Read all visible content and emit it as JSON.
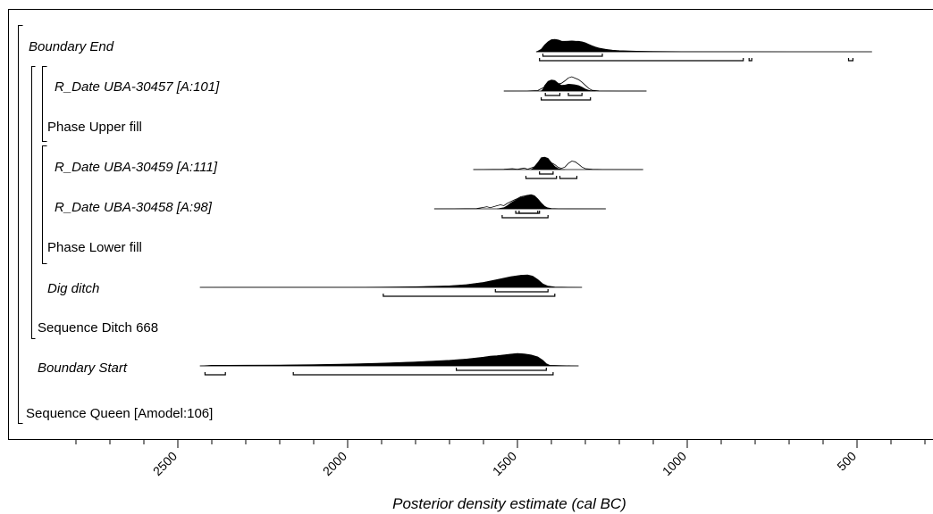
{
  "chart_data": {
    "type": "area",
    "xlabel": "Posterior density estimate (cal BC)",
    "x_ticks": [
      2500,
      2000,
      1500,
      1000,
      500
    ],
    "xlim": [
      2850,
      200
    ],
    "rows": [
      {
        "label": "Boundary End",
        "italic": true,
        "posterior": [
          [
            1445,
            0
          ],
          [
            1440,
            0.05
          ],
          [
            1430,
            0.2
          ],
          [
            1420,
            0.55
          ],
          [
            1410,
            0.8
          ],
          [
            1400,
            0.97
          ],
          [
            1390,
            1.0
          ],
          [
            1380,
            0.95
          ],
          [
            1370,
            0.86
          ],
          [
            1360,
            0.84
          ],
          [
            1350,
            0.86
          ],
          [
            1340,
            0.87
          ],
          [
            1330,
            0.85
          ],
          [
            1320,
            0.84
          ],
          [
            1310,
            0.8
          ],
          [
            1300,
            0.72
          ],
          [
            1290,
            0.6
          ],
          [
            1280,
            0.48
          ],
          [
            1270,
            0.38
          ],
          [
            1260,
            0.3
          ],
          [
            1240,
            0.2
          ],
          [
            1220,
            0.13
          ],
          [
            1200,
            0.09
          ],
          [
            1150,
            0.05
          ],
          [
            1100,
            0.03
          ],
          [
            1000,
            0.015
          ],
          [
            900,
            0.008
          ],
          [
            800,
            0.005
          ],
          [
            700,
            0.003
          ],
          [
            600,
            0.002
          ],
          [
            456,
            0
          ]
        ],
        "ranges_68": [
          [
            1425,
            1250
          ]
        ],
        "ranges_95": [
          [
            1435,
            835
          ],
          [
            818,
            810
          ],
          [
            525,
            512
          ]
        ]
      },
      {
        "label": "R_Date UBA-30457 [A:101]",
        "italic": true,
        "prior": [
          [
            1540,
            0
          ],
          [
            1470,
            0.005
          ],
          [
            1440,
            0.04
          ],
          [
            1420,
            0.28
          ],
          [
            1410,
            0.6
          ],
          [
            1400,
            0.72
          ],
          [
            1390,
            0.68
          ],
          [
            1380,
            0.5
          ],
          [
            1370,
            0.55
          ],
          [
            1360,
            0.72
          ],
          [
            1350,
            0.92
          ],
          [
            1340,
            1.0
          ],
          [
            1330,
            0.9
          ],
          [
            1320,
            0.8
          ],
          [
            1310,
            0.62
          ],
          [
            1300,
            0.4
          ],
          [
            1290,
            0.18
          ],
          [
            1280,
            0.05
          ],
          [
            1260,
            0.01
          ],
          [
            1200,
            0.003
          ],
          [
            1120,
            0
          ]
        ],
        "posterior": [
          [
            1430,
            0
          ],
          [
            1425,
            0.12
          ],
          [
            1420,
            0.38
          ],
          [
            1410,
            0.68
          ],
          [
            1400,
            0.78
          ],
          [
            1390,
            0.74
          ],
          [
            1380,
            0.55
          ],
          [
            1370,
            0.4
          ],
          [
            1360,
            0.42
          ],
          [
            1350,
            0.48
          ],
          [
            1340,
            0.46
          ],
          [
            1330,
            0.44
          ],
          [
            1320,
            0.38
          ],
          [
            1310,
            0.27
          ],
          [
            1300,
            0.14
          ],
          [
            1290,
            0.05
          ],
          [
            1280,
            0.01
          ],
          [
            1270,
            0
          ]
        ],
        "ranges_68": [
          [
            1418,
            1375
          ],
          [
            1350,
            1310
          ]
        ],
        "ranges_95": [
          [
            1430,
            1285
          ]
        ]
      },
      {
        "label": "R_Date UBA-30459  [A:111]",
        "italic": true,
        "prior": [
          [
            1630,
            0
          ],
          [
            1540,
            0.02
          ],
          [
            1515,
            0.07
          ],
          [
            1500,
            0.02
          ],
          [
            1480,
            0.12
          ],
          [
            1470,
            0.03
          ],
          [
            1450,
            0.22
          ],
          [
            1440,
            0.55
          ],
          [
            1430,
            0.85
          ],
          [
            1420,
            0.95
          ],
          [
            1410,
            0.8
          ],
          [
            1400,
            0.55
          ],
          [
            1390,
            0.4
          ],
          [
            1380,
            0.18
          ],
          [
            1370,
            0.1
          ],
          [
            1360,
            0.2
          ],
          [
            1350,
            0.5
          ],
          [
            1340,
            0.68
          ],
          [
            1330,
            0.62
          ],
          [
            1320,
            0.42
          ],
          [
            1310,
            0.2
          ],
          [
            1300,
            0.07
          ],
          [
            1280,
            0.02
          ],
          [
            1250,
            0.005
          ],
          [
            1130,
            0
          ]
        ],
        "posterior": [
          [
            1460,
            0
          ],
          [
            1450,
            0.18
          ],
          [
            1440,
            0.55
          ],
          [
            1430,
            0.95
          ],
          [
            1420,
            1.0
          ],
          [
            1410,
            0.9
          ],
          [
            1400,
            0.55
          ],
          [
            1390,
            0.25
          ],
          [
            1380,
            0.08
          ],
          [
            1370,
            0.02
          ],
          [
            1360,
            0
          ]
        ],
        "ranges_68": [
          [
            1435,
            1395
          ]
        ],
        "ranges_95": [
          [
            1475,
            1385
          ],
          [
            1375,
            1325
          ]
        ]
      },
      {
        "label": "R_Date UBA-30458 [A:98]",
        "italic": true,
        "prior": [
          [
            1745,
            0
          ],
          [
            1620,
            0.02
          ],
          [
            1600,
            0.1
          ],
          [
            1590,
            0.15
          ],
          [
            1580,
            0.08
          ],
          [
            1560,
            0.22
          ],
          [
            1550,
            0.28
          ],
          [
            1540,
            0.22
          ],
          [
            1530,
            0.38
          ],
          [
            1520,
            0.5
          ],
          [
            1510,
            0.62
          ],
          [
            1500,
            0.72
          ],
          [
            1490,
            0.85
          ],
          [
            1480,
            0.9
          ],
          [
            1470,
            0.95
          ],
          [
            1460,
            0.85
          ],
          [
            1450,
            0.7
          ],
          [
            1440,
            0.5
          ],
          [
            1430,
            0.28
          ],
          [
            1420,
            0.1
          ],
          [
            1400,
            0.02
          ],
          [
            1380,
            0.005
          ],
          [
            1240,
            0
          ]
        ],
        "posterior": [
          [
            1560,
            0
          ],
          [
            1540,
            0.08
          ],
          [
            1530,
            0.22
          ],
          [
            1520,
            0.4
          ],
          [
            1510,
            0.55
          ],
          [
            1500,
            0.68
          ],
          [
            1490,
            0.8
          ],
          [
            1480,
            0.85
          ],
          [
            1470,
            0.95
          ],
          [
            1460,
            1.0
          ],
          [
            1450,
            0.92
          ],
          [
            1440,
            0.7
          ],
          [
            1430,
            0.42
          ],
          [
            1420,
            0.18
          ],
          [
            1410,
            0.05
          ],
          [
            1400,
            0
          ]
        ],
        "ranges_68": [
          [
            1505,
            1440
          ],
          [
            1495,
            1435
          ]
        ],
        "ranges_95": [
          [
            1545,
            1410
          ]
        ]
      },
      {
        "label": "Dig ditch",
        "italic": true,
        "posterior": [
          [
            2435,
            0
          ],
          [
            2200,
            0.005
          ],
          [
            2000,
            0.01
          ],
          [
            1900,
            0.02
          ],
          [
            1800,
            0.05
          ],
          [
            1700,
            0.12
          ],
          [
            1650,
            0.22
          ],
          [
            1600,
            0.4
          ],
          [
            1560,
            0.62
          ],
          [
            1520,
            0.85
          ],
          [
            1490,
            0.97
          ],
          [
            1470,
            1.0
          ],
          [
            1455,
            0.9
          ],
          [
            1440,
            0.62
          ],
          [
            1425,
            0.28
          ],
          [
            1410,
            0.1
          ],
          [
            1390,
            0.03
          ],
          [
            1310,
            0
          ]
        ],
        "ranges_68": [
          [
            1565,
            1410
          ]
        ],
        "ranges_95": [
          [
            1895,
            1390
          ]
        ]
      },
      {
        "label": "Boundary Start",
        "italic": true,
        "posterior": [
          [
            2435,
            0
          ],
          [
            2400,
            0.05
          ],
          [
            2300,
            0.06
          ],
          [
            2200,
            0.07
          ],
          [
            2100,
            0.1
          ],
          [
            2000,
            0.15
          ],
          [
            1900,
            0.22
          ],
          [
            1800,
            0.32
          ],
          [
            1700,
            0.45
          ],
          [
            1650,
            0.55
          ],
          [
            1600,
            0.7
          ],
          [
            1580,
            0.78
          ],
          [
            1560,
            0.82
          ],
          [
            1540,
            0.88
          ],
          [
            1520,
            0.94
          ],
          [
            1500,
            1.0
          ],
          [
            1480,
            0.96
          ],
          [
            1460,
            0.88
          ],
          [
            1440,
            0.72
          ],
          [
            1425,
            0.45
          ],
          [
            1415,
            0.18
          ],
          [
            1405,
            0.05
          ],
          [
            1320,
            0
          ]
        ],
        "ranges_68": [
          [
            1680,
            1415
          ]
        ],
        "ranges_95": [
          [
            2420,
            2360
          ],
          [
            2160,
            1395
          ]
        ]
      }
    ],
    "structure_labels": [
      {
        "label": "Phase Upper fill",
        "italic": false
      },
      {
        "label": "Phase Lower fill",
        "italic": false
      },
      {
        "label": "Sequence Ditch 668",
        "italic": false
      },
      {
        "label": "Sequence Queen [Amodel:106]",
        "italic": false
      }
    ]
  }
}
